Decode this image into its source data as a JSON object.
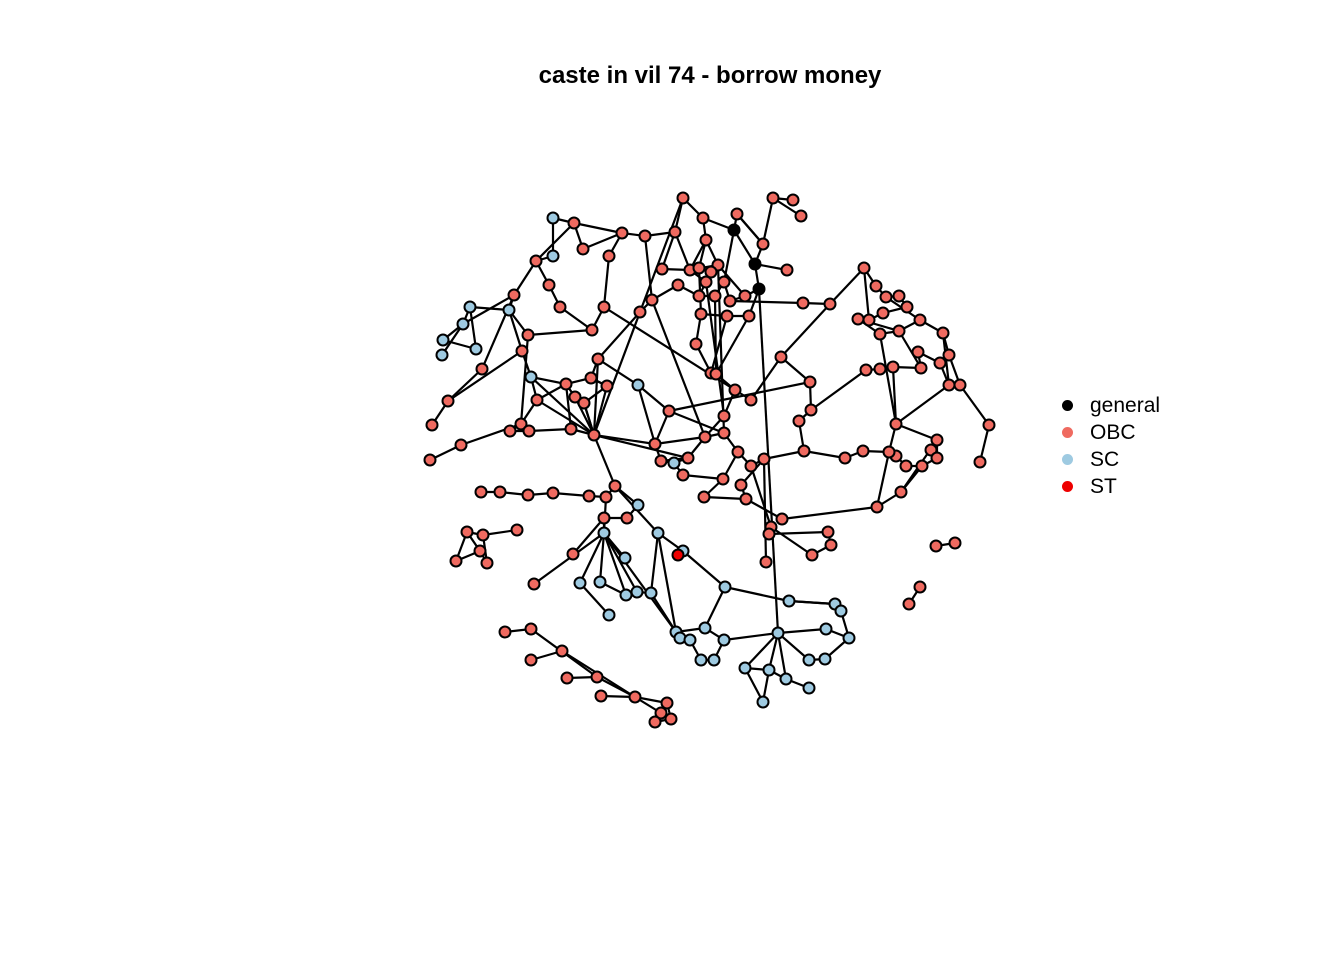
{
  "title": "caste in vil 74 - borrow money",
  "legend": [
    {
      "label": "general",
      "color": "#000000"
    },
    {
      "label": "OBC",
      "color": "#ef6a60"
    },
    {
      "label": "SC",
      "color": "#9ecae1"
    },
    {
      "label": "ST",
      "color": "#ee0000"
    }
  ]
}
